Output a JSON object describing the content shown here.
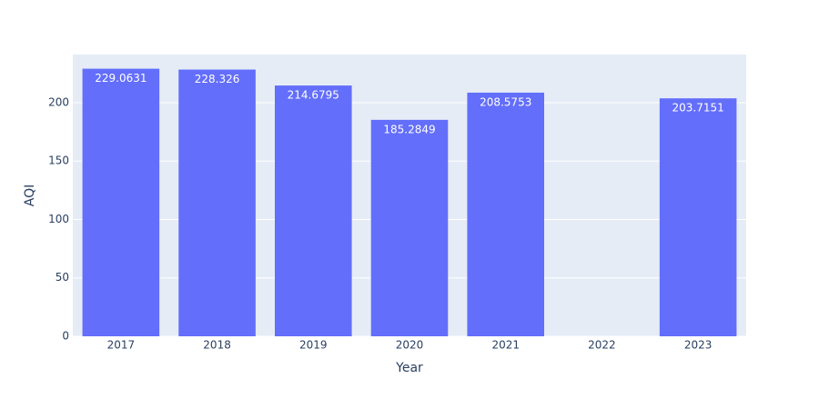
{
  "chart_data": {
    "type": "bar",
    "x_label": "Year",
    "y_label": "AQI",
    "categories": [
      "2017",
      "2018",
      "2019",
      "2020",
      "2021",
      "2022",
      "2023"
    ],
    "values": [
      229.0631,
      228.326,
      214.6795,
      185.2849,
      208.5753,
      null,
      203.7151
    ],
    "color": "#636efa",
    "ylim": [
      0,
      241.2
    ],
    "yticks": [
      0,
      50,
      100,
      150,
      200
    ],
    "grid": true
  }
}
